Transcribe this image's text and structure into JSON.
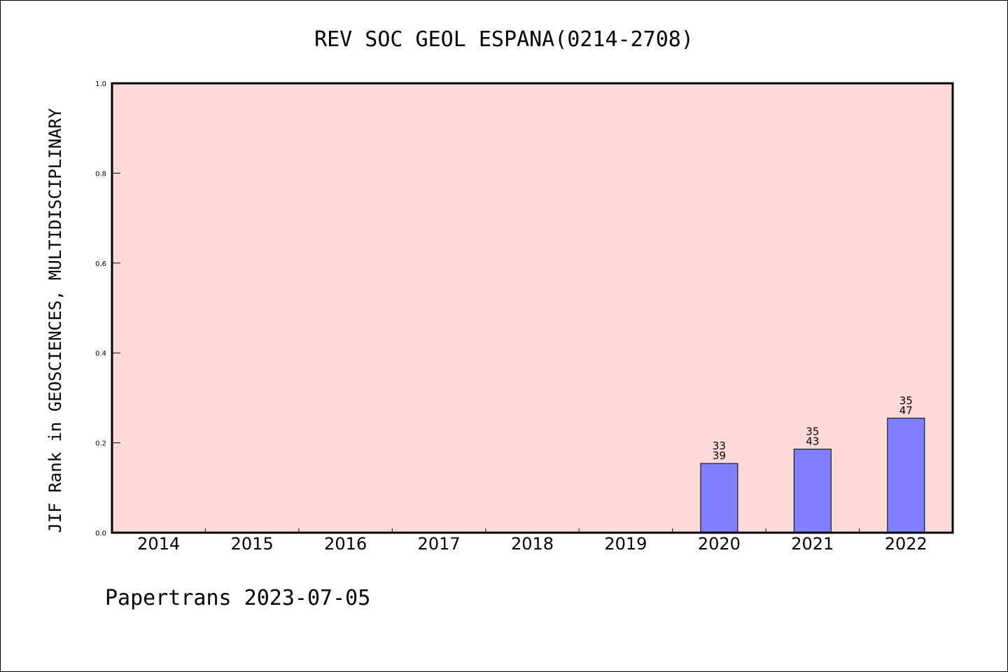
{
  "chart_data": {
    "type": "bar",
    "title": "REV SOC GEOL ESPANA(0214-2708)",
    "ylabel": "JIF Rank in GEOSCIENCES, MULTIDISCIPLINARY",
    "xlabel": "",
    "categories": [
      "2014",
      "2015",
      "2016",
      "2017",
      "2018",
      "2019",
      "2020",
      "2021",
      "2022"
    ],
    "values": [
      null,
      null,
      null,
      null,
      null,
      null,
      0.154,
      0.186,
      0.255
    ],
    "rank_labels": [
      null,
      null,
      null,
      null,
      null,
      null,
      {
        "rank": "33",
        "total": "39"
      },
      {
        "rank": "35",
        "total": "43"
      },
      {
        "rank": "35",
        "total": "47"
      }
    ],
    "ylim": [
      0,
      1.0
    ],
    "yticks": [
      "0.0",
      "0.2",
      "0.4",
      "0.6",
      "0.8",
      "1.0"
    ],
    "grid": false,
    "colors": {
      "plot_background": "#fddad7",
      "bar_fill": "#8080ff",
      "bar_edge": "#000000"
    }
  },
  "footer": {
    "text": "Papertrans 2023-07-05"
  }
}
